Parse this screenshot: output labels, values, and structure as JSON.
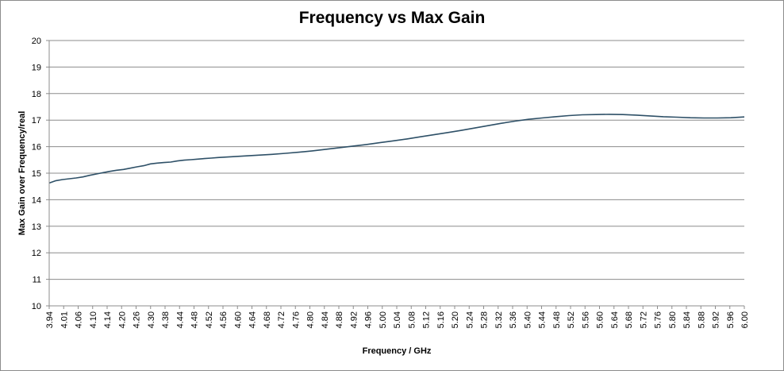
{
  "chart_data": {
    "type": "line",
    "title": "Frequency vs Max Gain",
    "xlabel": "Frequency / GHz",
    "ylabel": "Max Gain over Frequency/real",
    "xlim": [
      3.94,
      6.0
    ],
    "ylim": [
      10,
      20
    ],
    "grid": true,
    "legend": "none",
    "x_tick_labels": [
      "3.94",
      "4.01",
      "4.06",
      "4.10",
      "4.14",
      "4.20",
      "4.26",
      "4.30",
      "4.38",
      "4.44",
      "4.48",
      "4.52",
      "4.56",
      "4.60",
      "4.64",
      "4.68",
      "4.72",
      "4.76",
      "4.80",
      "4.84",
      "4.88",
      "4.92",
      "4.96",
      "5.00",
      "5.04",
      "5.08",
      "5.12",
      "5.16",
      "5.20",
      "5.24",
      "5.28",
      "5.32",
      "5.36",
      "5.40",
      "5.44",
      "5.48",
      "5.52",
      "5.56",
      "5.60",
      "5.64",
      "5.68",
      "5.72",
      "5.76",
      "5.80",
      "5.84",
      "5.88",
      "5.92",
      "5.96",
      "6.00"
    ],
    "y_ticks": [
      10,
      11,
      12,
      13,
      14,
      15,
      16,
      17,
      18,
      19,
      20
    ],
    "series": [
      {
        "color": "#2e5067",
        "x": [
          3.94,
          3.96,
          3.98,
          4.0,
          4.02,
          4.04,
          4.06,
          4.08,
          4.1,
          4.12,
          4.14,
          4.16,
          4.18,
          4.2,
          4.22,
          4.24,
          4.26,
          4.28,
          4.3,
          4.32,
          4.34,
          4.36,
          4.38,
          4.4,
          4.42,
          4.44,
          4.48,
          4.52,
          4.56,
          4.6,
          4.64,
          4.68,
          4.72,
          4.76,
          4.8,
          4.84,
          4.88,
          4.92,
          4.96,
          5.0,
          5.04,
          5.08,
          5.12,
          5.16,
          5.2,
          5.24,
          5.28,
          5.32,
          5.36,
          5.4,
          5.44,
          5.48,
          5.52,
          5.56,
          5.6,
          5.64,
          5.68,
          5.72,
          5.76,
          5.8,
          5.84,
          5.88,
          5.92,
          5.96,
          6.0
        ],
        "y": [
          14.63,
          14.72,
          14.76,
          14.79,
          14.82,
          14.86,
          14.92,
          14.97,
          15.02,
          15.07,
          15.11,
          15.14,
          15.19,
          15.24,
          15.28,
          15.35,
          15.38,
          15.4,
          15.42,
          15.46,
          15.49,
          15.51,
          15.53,
          15.55,
          15.57,
          15.59,
          15.62,
          15.65,
          15.68,
          15.71,
          15.75,
          15.79,
          15.84,
          15.9,
          15.96,
          16.02,
          16.08,
          16.15,
          16.22,
          16.29,
          16.37,
          16.45,
          16.53,
          16.61,
          16.7,
          16.79,
          16.88,
          16.96,
          17.03,
          17.08,
          17.13,
          17.17,
          17.2,
          17.21,
          17.22,
          17.21,
          17.19,
          17.16,
          17.13,
          17.11,
          17.09,
          17.08,
          17.08,
          17.09,
          17.12
        ]
      }
    ]
  }
}
